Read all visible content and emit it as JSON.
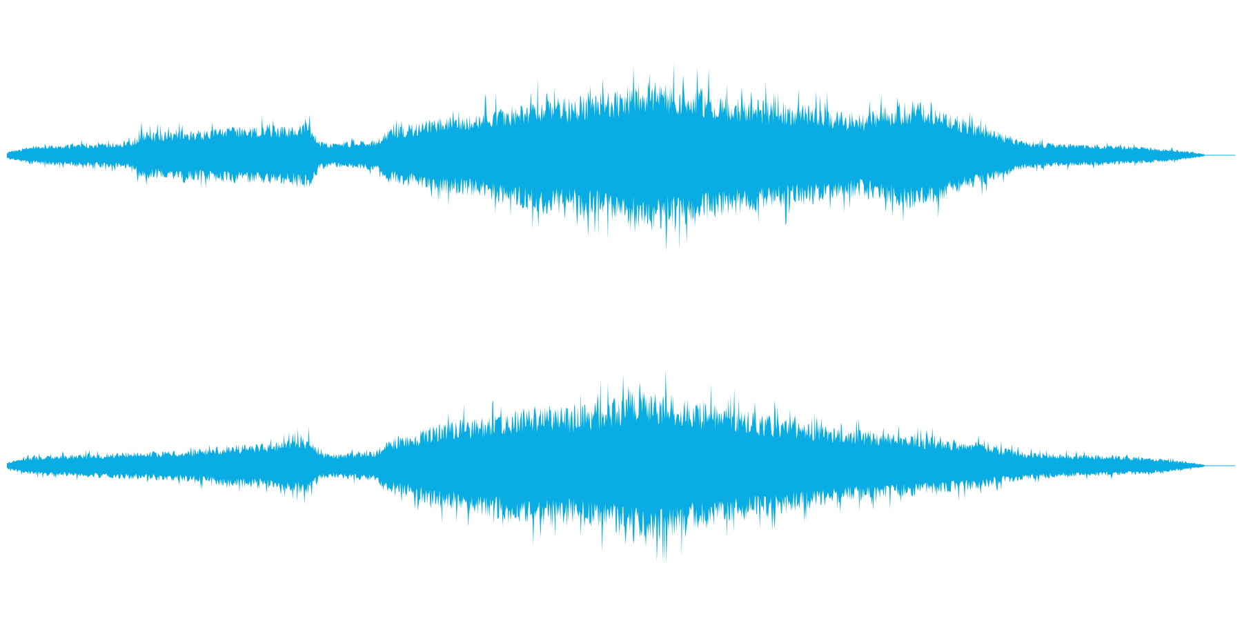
{
  "chart_data": {
    "type": "area",
    "description_note": "",
    "x_domain": [
      0,
      1
    ],
    "y_domain": [
      -1,
      1
    ],
    "color": "#09ADE3",
    "grid": false,
    "legend": "none",
    "series": [
      {
        "channel": 1,
        "envelope_x": [
          0,
          0.02,
          0.06,
          0.1,
          0.11,
          0.12,
          0.15,
          0.18,
          0.21,
          0.23,
          0.245,
          0.255,
          0.265,
          0.28,
          0.3,
          0.31,
          0.33,
          0.35,
          0.38,
          0.4,
          0.42,
          0.44,
          0.46,
          0.48,
          0.5,
          0.52,
          0.54,
          0.56,
          0.58,
          0.6,
          0.62,
          0.64,
          0.66,
          0.68,
          0.7,
          0.72,
          0.74,
          0.755,
          0.76,
          0.78,
          0.8,
          0.82,
          0.83,
          0.86,
          0.9,
          0.93,
          0.95,
          0.97,
          0.98
        ],
        "envelope_amplitude": [
          0.03,
          0.08,
          0.1,
          0.12,
          0.22,
          0.2,
          0.22,
          0.24,
          0.25,
          0.26,
          0.3,
          0.12,
          0.1,
          0.12,
          0.13,
          0.22,
          0.28,
          0.32,
          0.36,
          0.42,
          0.46,
          0.52,
          0.5,
          0.54,
          0.58,
          0.66,
          0.62,
          0.6,
          0.52,
          0.5,
          0.46,
          0.44,
          0.42,
          0.38,
          0.36,
          0.44,
          0.48,
          0.46,
          0.4,
          0.32,
          0.24,
          0.16,
          0.12,
          0.1,
          0.09,
          0.07,
          0.05,
          0.02,
          0.0
        ]
      },
      {
        "channel": 2,
        "envelope_x": [
          0,
          0.02,
          0.06,
          0.1,
          0.15,
          0.18,
          0.21,
          0.23,
          0.245,
          0.255,
          0.265,
          0.28,
          0.3,
          0.31,
          0.33,
          0.35,
          0.38,
          0.4,
          0.42,
          0.44,
          0.46,
          0.48,
          0.5,
          0.52,
          0.54,
          0.56,
          0.58,
          0.6,
          0.62,
          0.64,
          0.66,
          0.68,
          0.7,
          0.72,
          0.74,
          0.76,
          0.78,
          0.8,
          0.82,
          0.83,
          0.86,
          0.9,
          0.93,
          0.95,
          0.97,
          0.98
        ],
        "envelope_amplitude": [
          0.03,
          0.08,
          0.1,
          0.12,
          0.14,
          0.18,
          0.2,
          0.22,
          0.26,
          0.12,
          0.1,
          0.12,
          0.13,
          0.22,
          0.28,
          0.36,
          0.42,
          0.46,
          0.5,
          0.52,
          0.5,
          0.54,
          0.6,
          0.66,
          0.62,
          0.56,
          0.52,
          0.48,
          0.44,
          0.4,
          0.36,
          0.32,
          0.3,
          0.28,
          0.26,
          0.24,
          0.22,
          0.18,
          0.14,
          0.12,
          0.1,
          0.09,
          0.07,
          0.05,
          0.02,
          0.0
        ]
      }
    ]
  }
}
